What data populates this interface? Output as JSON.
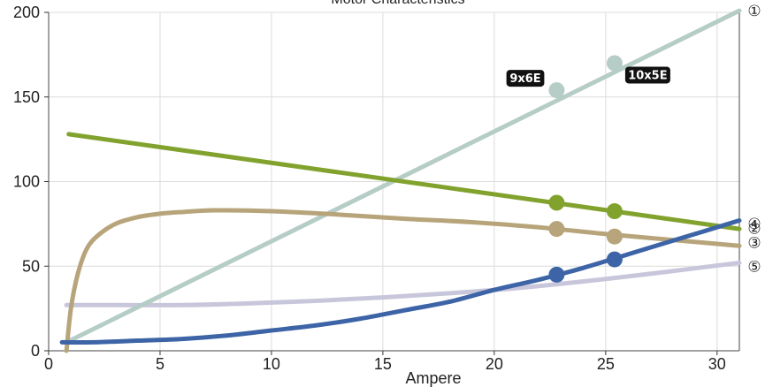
{
  "chart_data": {
    "type": "line",
    "title": "Motor Characteristics",
    "xlabel": "Ampere",
    "ylabel": "",
    "xlim": [
      0,
      31
    ],
    "ylim": [
      0,
      200
    ],
    "xticks": [
      "0",
      "5",
      "10",
      "15",
      "20",
      "25",
      "30"
    ],
    "yticks": [
      "0",
      "50",
      "100",
      "150",
      "200"
    ],
    "grid": true,
    "series": [
      {
        "name": "①",
        "color": "#b5cdc6",
        "x": [
          0.8,
          31
        ],
        "y": [
          5,
          201
        ],
        "markers": [
          {
            "x": 22.8,
            "y": 154,
            "tag": "9x6E"
          },
          {
            "x": 25.4,
            "y": 170,
            "tag": "10x5E"
          }
        ]
      },
      {
        "name": "②",
        "color": "#3d64a6",
        "x": [
          0.6,
          2,
          4,
          6,
          8,
          10,
          12,
          14,
          16,
          18,
          20,
          22,
          24,
          26,
          28,
          31
        ],
        "y": [
          5,
          5,
          6,
          7,
          9,
          12,
          15,
          19,
          24,
          29,
          36,
          42,
          49,
          57,
          65,
          77
        ],
        "markers": [
          {
            "x": 22.8,
            "y": 45
          },
          {
            "x": 25.4,
            "y": 54
          }
        ]
      },
      {
        "name": "③",
        "color": "#b7a47a",
        "x": [
          0.8,
          1.0,
          1.3,
          1.7,
          2.2,
          3,
          4,
          5,
          6,
          7.5,
          10,
          13,
          16,
          19,
          22,
          25,
          28,
          31
        ],
        "y": [
          0,
          25,
          45,
          60,
          68,
          75,
          79,
          81,
          82,
          83,
          82.5,
          80.5,
          78,
          76,
          73,
          69,
          65.5,
          62
        ],
        "markers": [
          {
            "x": 22.8,
            "y": 72
          },
          {
            "x": 25.4,
            "y": 67.5
          }
        ]
      },
      {
        "name": "④",
        "color": "#82a22e",
        "x": [
          0.9,
          31
        ],
        "y": [
          128,
          72
        ],
        "markers": [
          {
            "x": 22.8,
            "y": 87.5
          },
          {
            "x": 25.4,
            "y": 82.5
          }
        ]
      },
      {
        "name": "⑤",
        "color": "#c8c6db",
        "x": [
          0.8,
          3,
          6,
          9,
          12,
          15,
          18,
          21,
          24,
          27,
          31
        ],
        "y": [
          27,
          27,
          27,
          28,
          29.5,
          31.5,
          34,
          37,
          41,
          45.5,
          52
        ],
        "markers": []
      }
    ]
  }
}
